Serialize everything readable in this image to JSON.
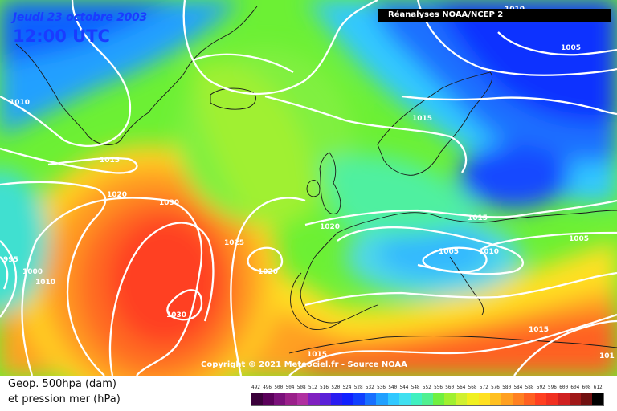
{
  "header": {
    "date": "Jeudi 23 octobre 2003",
    "time": "12:00 UTC",
    "source": "Réanalyses NOAA/NCEP 2",
    "copyright": "Copyright © 2021 Meteociel.fr - Source NOAA"
  },
  "legend": {
    "line1": "Geop. 500hpa (dam)",
    "line2": "et pression mer (hPa)",
    "scale_values": [
      "492",
      "496",
      "500",
      "504",
      "508",
      "512",
      "516",
      "520",
      "524",
      "528",
      "532",
      "536",
      "540",
      "544",
      "548",
      "552",
      "556",
      "560",
      "564",
      "568",
      "572",
      "576",
      "580",
      "584",
      "588",
      "592",
      "596",
      "600",
      "604",
      "608",
      "612"
    ],
    "scale_colors": [
      "#3a003a",
      "#5a005a",
      "#7a107a",
      "#9a208a",
      "#b030a0",
      "#8020c0",
      "#5a20d8",
      "#2a1cf0",
      "#1020ff",
      "#1040ff",
      "#1870ff",
      "#20a0ff",
      "#30c8ff",
      "#40e0f0",
      "#40f0c0",
      "#50f090",
      "#70f040",
      "#a0f030",
      "#d0f030",
      "#f0f020",
      "#ffe020",
      "#ffc020",
      "#ffa020",
      "#ff8020",
      "#ff6020",
      "#ff4020",
      "#f03020",
      "#d02020",
      "#a01818",
      "#701010",
      "#000000"
    ]
  },
  "isobars": [
    {
      "id": "1010-nw",
      "text": "1010"
    },
    {
      "id": "1010-ne",
      "text": "1010"
    },
    {
      "id": "1005-ne",
      "text": "1005"
    },
    {
      "id": "1015-north",
      "text": "1015"
    },
    {
      "id": "1015-west",
      "text": "1015"
    },
    {
      "id": "1020-west",
      "text": "1020"
    },
    {
      "id": "1030-north",
      "text": "1030"
    },
    {
      "id": "1025-mid",
      "text": "1025"
    },
    {
      "id": "1020-mid",
      "text": "1020"
    },
    {
      "id": "1030-center",
      "text": "1030"
    },
    {
      "id": "1020-uk",
      "text": "1020"
    },
    {
      "id": "1015-europe",
      "text": "1015"
    },
    {
      "id": "1005-europe",
      "text": "1005"
    },
    {
      "id": "1010-europe",
      "text": "1010"
    },
    {
      "id": "1005-east",
      "text": "1005"
    },
    {
      "id": "1015-se",
      "text": "1015"
    },
    {
      "id": "1015-south",
      "text": "1015"
    },
    {
      "id": "995-west",
      "text": "995"
    },
    {
      "id": "1000-west",
      "text": "1000"
    },
    {
      "id": "1010-west",
      "text": "1010"
    },
    {
      "id": "101-far-east",
      "text": "101"
    }
  ],
  "regions": [
    {
      "name": "greenland"
    },
    {
      "name": "iceland"
    },
    {
      "name": "british-isles"
    },
    {
      "name": "scandinavia"
    },
    {
      "name": "iberia"
    },
    {
      "name": "mainland-europe"
    },
    {
      "name": "north-africa"
    }
  ]
}
